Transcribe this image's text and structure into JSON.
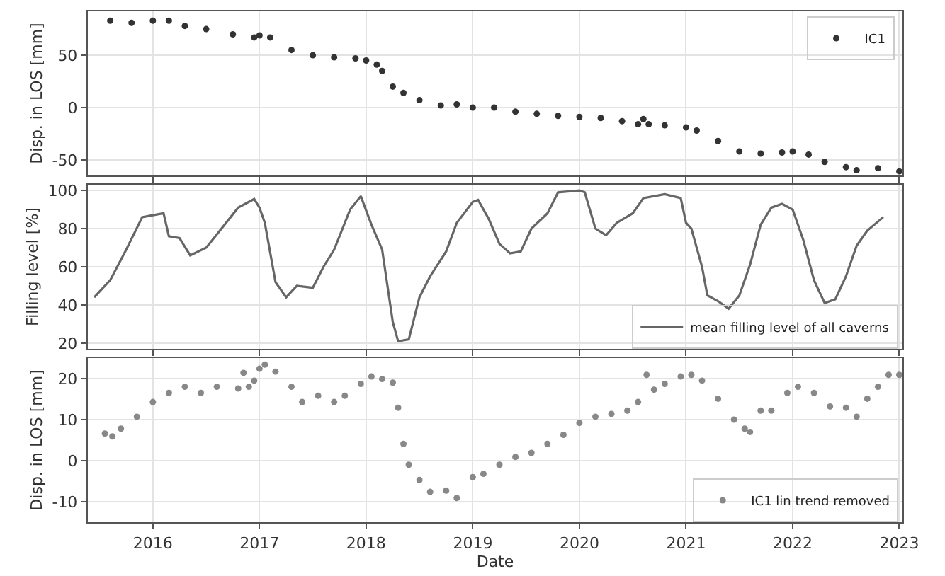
{
  "chart_data": [
    {
      "type": "scatter",
      "ylabel": "Disp. in LOS [mm]",
      "xlim": [
        2015.39,
        2023.03
      ],
      "xticks": [
        2016,
        2017,
        2018,
        2019,
        2020,
        2021,
        2022,
        2023
      ],
      "ylim": [
        -65,
        92
      ],
      "yticks": [
        -50,
        0,
        50
      ],
      "grid": true,
      "legend": "top right",
      "marker": "circle",
      "tick_labels": "y",
      "series": [
        {
          "name": "IC1",
          "color": "#333333",
          "x": [
            2015.6,
            2015.8,
            2016.0,
            2016.15,
            2016.3,
            2016.5,
            2016.75,
            2016.95,
            2017.0,
            2017.1,
            2017.3,
            2017.5,
            2017.7,
            2017.9,
            2018.0,
            2018.1,
            2018.15,
            2018.25,
            2018.35,
            2018.5,
            2018.7,
            2018.85,
            2019.0,
            2019.2,
            2019.4,
            2019.6,
            2019.8,
            2020.0,
            2020.2,
            2020.4,
            2020.55,
            2020.6,
            2020.65,
            2020.8,
            2021.0,
            2021.1,
            2021.3,
            2021.5,
            2021.7,
            2021.9,
            2022.0,
            2022.15,
            2022.3,
            2022.5,
            2022.6,
            2022.8,
            2023.0
          ],
          "values": [
            83,
            81,
            83,
            83,
            78,
            75,
            70,
            67,
            69,
            67,
            55,
            50,
            48,
            47,
            45,
            41,
            35,
            20,
            14,
            7,
            2,
            3,
            0,
            0,
            -4,
            -6,
            -8,
            -9,
            -10,
            -13,
            -16,
            -11,
            -16,
            -17,
            -19,
            -22,
            -32,
            -42,
            -44,
            -43,
            -42,
            -45,
            -52,
            -57,
            -60,
            -58,
            -61
          ]
        }
      ]
    },
    {
      "type": "line",
      "ylabel": "Filling level [%]",
      "xlim": [
        2015.39,
        2023.03
      ],
      "xticks": [
        2016,
        2017,
        2018,
        2019,
        2020,
        2021,
        2022,
        2023
      ],
      "ylim": [
        17,
        103
      ],
      "yticks": [
        20,
        40,
        60,
        80,
        100
      ],
      "grid": true,
      "legend": "bottom right",
      "line_style": "solid",
      "tick_labels": "y",
      "series": [
        {
          "name": "mean filling level of all caverns",
          "color": "#666666",
          "x": [
            2015.45,
            2015.6,
            2015.75,
            2015.9,
            2016.0,
            2016.1,
            2016.15,
            2016.25,
            2016.35,
            2016.5,
            2016.6,
            2016.8,
            2016.95,
            2017.0,
            2017.05,
            2017.15,
            2017.25,
            2017.35,
            2017.5,
            2017.6,
            2017.7,
            2017.85,
            2017.95,
            2018.05,
            2018.15,
            2018.25,
            2018.3,
            2018.4,
            2018.5,
            2018.6,
            2018.75,
            2018.85,
            2019.0,
            2019.05,
            2019.15,
            2019.25,
            2019.35,
            2019.45,
            2019.55,
            2019.7,
            2019.8,
            2020.0,
            2020.05,
            2020.15,
            2020.25,
            2020.35,
            2020.5,
            2020.6,
            2020.8,
            2020.95,
            2021.0,
            2021.05,
            2021.15,
            2021.2,
            2021.3,
            2021.4,
            2021.5,
            2021.6,
            2021.7,
            2021.8,
            2021.9,
            2022.0,
            2022.1,
            2022.2,
            2022.3,
            2022.4,
            2022.5,
            2022.6,
            2022.7,
            2022.85
          ],
          "values": [
            44,
            53,
            69,
            86,
            87,
            88,
            76,
            75,
            66,
            70,
            77,
            91,
            95.5,
            91,
            83,
            52,
            44,
            50,
            49,
            60,
            69,
            90,
            97,
            82,
            69,
            31,
            21,
            22,
            44,
            55,
            68,
            83,
            94,
            95,
            85,
            72,
            67,
            68,
            80,
            88,
            99,
            100,
            99,
            80,
            76.5,
            83,
            88,
            96,
            98,
            96,
            83,
            80,
            60,
            45,
            42,
            38,
            45,
            61,
            82,
            91,
            93,
            90,
            74,
            53,
            41,
            43,
            55,
            71,
            79,
            86
          ]
        }
      ]
    },
    {
      "type": "scatter",
      "ylabel": "Disp. in LOS [mm]",
      "xlabel": "Date",
      "xlim": [
        2015.39,
        2023.03
      ],
      "xticks": [
        2016,
        2017,
        2018,
        2019,
        2020,
        2021,
        2022,
        2023
      ],
      "ylim": [
        -15,
        25
      ],
      "yticks": [
        -10,
        0,
        10,
        20
      ],
      "grid": true,
      "legend": "bottom right",
      "marker": "circle",
      "series": [
        {
          "name": "IC1 lin trend removed",
          "color": "#888888",
          "x": [
            2015.55,
            2015.62,
            2015.7,
            2015.85,
            2016.0,
            2016.15,
            2016.3,
            2016.45,
            2016.6,
            2016.8,
            2016.85,
            2016.9,
            2016.95,
            2017.0,
            2017.05,
            2017.15,
            2017.3,
            2017.4,
            2017.55,
            2017.7,
            2017.8,
            2017.95,
            2018.05,
            2018.15,
            2018.25,
            2018.3,
            2018.35,
            2018.4,
            2018.5,
            2018.6,
            2018.75,
            2018.85,
            2019.0,
            2019.1,
            2019.25,
            2019.4,
            2019.55,
            2019.7,
            2019.85,
            2020.0,
            2020.15,
            2020.3,
            2020.45,
            2020.55,
            2020.63,
            2020.7,
            2020.8,
            2020.95,
            2021.05,
            2021.15,
            2021.3,
            2021.45,
            2021.55,
            2021.6,
            2021.7,
            2021.8,
            2021.95,
            2022.05,
            2022.2,
            2022.35,
            2022.5,
            2022.6,
            2022.7,
            2022.8,
            2022.9,
            2023.0
          ],
          "values": [
            6.6,
            5.9,
            7.8,
            10.7,
            14.3,
            16.5,
            18,
            16.5,
            18,
            17.6,
            21.4,
            18,
            19.5,
            22.4,
            23.4,
            21.7,
            18,
            14.3,
            15.8,
            14.3,
            15.8,
            18.7,
            20.5,
            19.9,
            19,
            12.9,
            4.1,
            -1,
            -4.7,
            -7.6,
            -7.3,
            -9.1,
            -4,
            -3.2,
            -1,
            0.9,
            1.9,
            4.1,
            6.3,
            9.2,
            10.7,
            11.4,
            12.2,
            14.3,
            20.9,
            17.3,
            18.7,
            20.5,
            20.9,
            19.5,
            15.1,
            10,
            7.8,
            7,
            12.2,
            12.2,
            16.5,
            18,
            16.5,
            13.2,
            12.9,
            10.7,
            15.1,
            18,
            20.9,
            20.9
          ]
        }
      ]
    }
  ]
}
